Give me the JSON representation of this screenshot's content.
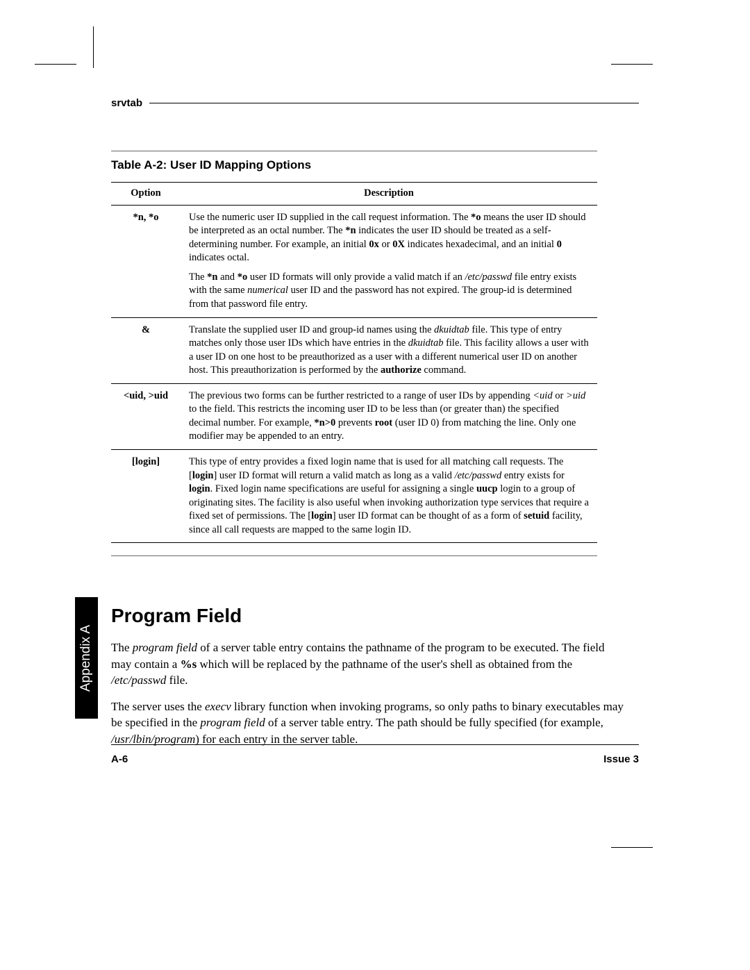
{
  "header": {
    "title": "srvtab"
  },
  "table": {
    "caption": "Table A-2:  User ID Mapping Options",
    "columns": [
      "Option",
      "Description"
    ],
    "rows": [
      {
        "option": "*n, *o"
      },
      {
        "option": "&"
      },
      {
        "option": "<uid, >uid"
      },
      {
        "option": "[login]"
      }
    ]
  },
  "row1": {
    "p1a": "Use the numeric user ID supplied in the call request information.  The ",
    "p1b": "*o",
    "p1c": " means the user ID should be interpreted as an octal number.  The ",
    "p1d": "*n",
    "p1e": " indicates the user ID should be treated as a self-determining number. For example, an initial ",
    "p1f": "0x",
    "p1g": " or ",
    "p1h": "0X",
    "p1i": " indicates hexadecimal, and an initial ",
    "p1j": "0",
    "p1k": " indicates octal.",
    "p2a": "The ",
    "p2b": "*n",
    "p2c": " and ",
    "p2d": "*o",
    "p2e": " user ID formats will only provide a valid match if an ",
    "p2f": "/etc/passwd",
    "p2g": " file entry exists with the same ",
    "p2h": "numerical",
    "p2i": " user ID and the password has not expired. The group-id is determined from that password file entry."
  },
  "row2": {
    "a": "Translate the supplied user ID and group-id names using the ",
    "b": "dkuidtab",
    "c": " file. This type of entry matches only those user IDs which have entries in the ",
    "d": "dkuidtab",
    "e": " file. This facility allows a user with a user ID on one host to be preauthorized as a user with a different numerical user ID on another host. This preauthorization is performed by the ",
    "f": "authorize",
    "g": " command."
  },
  "row3": {
    "a": "The previous two forms can be further restricted to a range of user IDs by appending ",
    "b": "<uid",
    "c": " or ",
    "d": ">uid",
    "e": " to the field. This restricts the incoming user ID to be less than (or greater than) the specified decimal number. For example, ",
    "f": "*n>0",
    "g": " prevents ",
    "h": "root",
    "i": " (user ID 0) from matching the line. Only one modifier may be appended to an entry."
  },
  "row4": {
    "a": "This type of entry provides a fixed login name that is used for all matching call requests. The [",
    "b": "login",
    "c": "] user ID format will return a valid match as long as a valid ",
    "d": "/etc/passwd",
    "e": " entry exists for ",
    "f": "login",
    "g": ".  Fixed login name specifications are useful for assigning a single ",
    "h": "uucp",
    "i": " login to a group of originating sites. The facility is also useful when invoking authorization type services that require a fixed set of permissions. The [",
    "j": "login",
    "k": "] user ID format can be thought of as a form of ",
    "l": "setuid",
    "m": " facility, since all call requests are mapped to the same login ID."
  },
  "section": {
    "title": "Program Field",
    "p1a": "The ",
    "p1b": "program field",
    "p1c": " of a server table entry contains the pathname of the program to be executed.  The field may contain a ",
    "p1d": "%s",
    "p1e": " which will be replaced by the pathname of the user's shell as obtained from the ",
    "p1f": "/etc/passwd",
    "p1g": " file.",
    "p2a": "The server uses the ",
    "p2b": "execv",
    "p2c": " library function when invoking programs, so only paths to binary executables may be specified in the ",
    "p2d": "program field",
    "p2e": " of a server table entry. The path should be fully specified (for example, ",
    "p2f": "/usr/lbin/program",
    "p2g": ") for each entry in the server table."
  },
  "sideTab": "Appendix A",
  "footer": {
    "left": "A-6",
    "right": "Issue 3"
  }
}
